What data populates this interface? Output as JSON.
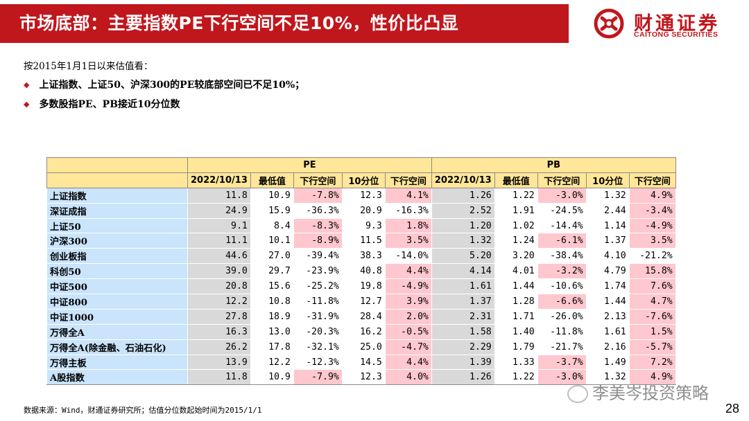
{
  "header": {
    "title": "市场底部：主要指数PE下行空间不足10%，性价比凸显",
    "logo_cn": "财通证券",
    "logo_en": "CAITONG SECURITIES",
    "brand_color": "#c0171d"
  },
  "intro": "按2015年1月1日以来估值看：",
  "bullets": [
    "上证指数、上证50、沪深300的PE较底部空间已不足10%；",
    "多数股指PE、PB接近10分位数"
  ],
  "table": {
    "group_headers": [
      "PE",
      "PB"
    ],
    "columns": [
      "2022/10/13",
      "最低值",
      "下行空间",
      "10分位",
      "下行空间",
      "2022/10/13",
      "最低值",
      "下行空间",
      "10分位",
      "下行空间"
    ],
    "rows": [
      {
        "name": "上证指数",
        "values": [
          "11.8",
          "10.9",
          "-7.8%",
          "12.3",
          "4.1%",
          "1.26",
          "1.22",
          "-3.0%",
          "1.32",
          "4.9%"
        ]
      },
      {
        "name": "深证成指",
        "values": [
          "24.9",
          "15.9",
          "-36.3%",
          "20.9",
          "-16.3%",
          "2.52",
          "1.91",
          "-24.5%",
          "2.44",
          "-3.4%"
        ]
      },
      {
        "name": "上证50",
        "values": [
          "9.1",
          "8.4",
          "-8.3%",
          "9.3",
          "1.8%",
          "1.20",
          "1.02",
          "-14.4%",
          "1.14",
          "-4.9%"
        ]
      },
      {
        "name": "沪深300",
        "values": [
          "11.1",
          "10.1",
          "-8.9%",
          "11.5",
          "3.5%",
          "1.32",
          "1.24",
          "-6.1%",
          "1.37",
          "3.5%"
        ]
      },
      {
        "name": "创业板指",
        "values": [
          "44.6",
          "27.0",
          "-39.4%",
          "38.3",
          "-14.0%",
          "5.20",
          "3.20",
          "-38.4%",
          "4.10",
          "-21.2%"
        ]
      },
      {
        "name": "科创50",
        "values": [
          "39.0",
          "29.7",
          "-23.9%",
          "40.8",
          "4.4%",
          "4.14",
          "4.01",
          "-3.2%",
          "4.79",
          "15.8%"
        ]
      },
      {
        "name": "中证500",
        "values": [
          "20.8",
          "15.6",
          "-25.2%",
          "19.8",
          "-4.9%",
          "1.61",
          "1.44",
          "-10.6%",
          "1.74",
          "7.6%"
        ]
      },
      {
        "name": "中证800",
        "values": [
          "12.2",
          "10.8",
          "-11.8%",
          "12.7",
          "3.9%",
          "1.37",
          "1.28",
          "-6.6%",
          "1.44",
          "4.7%"
        ]
      },
      {
        "name": "中证1000",
        "values": [
          "27.8",
          "18.9",
          "-31.9%",
          "28.4",
          "2.0%",
          "2.31",
          "1.71",
          "-26.0%",
          "2.13",
          "-7.6%"
        ]
      },
      {
        "name": "万得全A",
        "values": [
          "16.3",
          "13.0",
          "-20.3%",
          "16.2",
          "-0.5%",
          "1.58",
          "1.40",
          "-11.8%",
          "1.61",
          "1.5%"
        ]
      },
      {
        "name": "万得全A(除金融、石油石化)",
        "values": [
          "26.2",
          "17.8",
          "-32.1%",
          "25.0",
          "-4.7%",
          "2.29",
          "1.79",
          "-21.7%",
          "2.16",
          "-5.7%"
        ]
      },
      {
        "name": "万得主板",
        "values": [
          "13.9",
          "12.2",
          "-12.3%",
          "14.5",
          "4.4%",
          "1.39",
          "1.33",
          "-3.7%",
          "1.49",
          "7.2%"
        ]
      },
      {
        "name": "A股指数",
        "values": [
          "11.8",
          "10.9",
          "-7.9%",
          "12.3",
          "4.0%",
          "1.26",
          "1.22",
          "-3.0%",
          "1.32",
          "4.9%"
        ]
      }
    ],
    "highlight": [
      [
        false,
        false,
        true,
        false,
        true,
        false,
        false,
        true,
        false,
        true
      ],
      [
        false,
        false,
        false,
        false,
        false,
        false,
        false,
        false,
        false,
        true
      ],
      [
        false,
        false,
        true,
        false,
        true,
        false,
        false,
        false,
        false,
        true
      ],
      [
        false,
        false,
        true,
        false,
        true,
        false,
        false,
        true,
        false,
        true
      ],
      [
        false,
        false,
        false,
        false,
        false,
        false,
        false,
        false,
        false,
        false
      ],
      [
        false,
        false,
        false,
        false,
        true,
        false,
        false,
        true,
        false,
        true
      ],
      [
        false,
        false,
        false,
        false,
        true,
        false,
        false,
        false,
        false,
        true
      ],
      [
        false,
        false,
        false,
        false,
        true,
        false,
        false,
        true,
        false,
        true
      ],
      [
        false,
        false,
        false,
        false,
        true,
        false,
        false,
        false,
        false,
        true
      ],
      [
        false,
        false,
        false,
        false,
        true,
        false,
        false,
        false,
        false,
        true
      ],
      [
        false,
        false,
        false,
        false,
        true,
        false,
        false,
        false,
        false,
        true
      ],
      [
        false,
        false,
        false,
        false,
        true,
        false,
        false,
        true,
        false,
        true
      ],
      [
        false,
        false,
        true,
        false,
        true,
        false,
        false,
        true,
        false,
        true
      ]
    ],
    "highlight_color": "#ffc7ce"
  },
  "footer": "数据来源：Wind，财通证券研究所；估值分位数起始时间为2015/1/1",
  "page_number": "28",
  "watermark": "李美岑投资策略"
}
